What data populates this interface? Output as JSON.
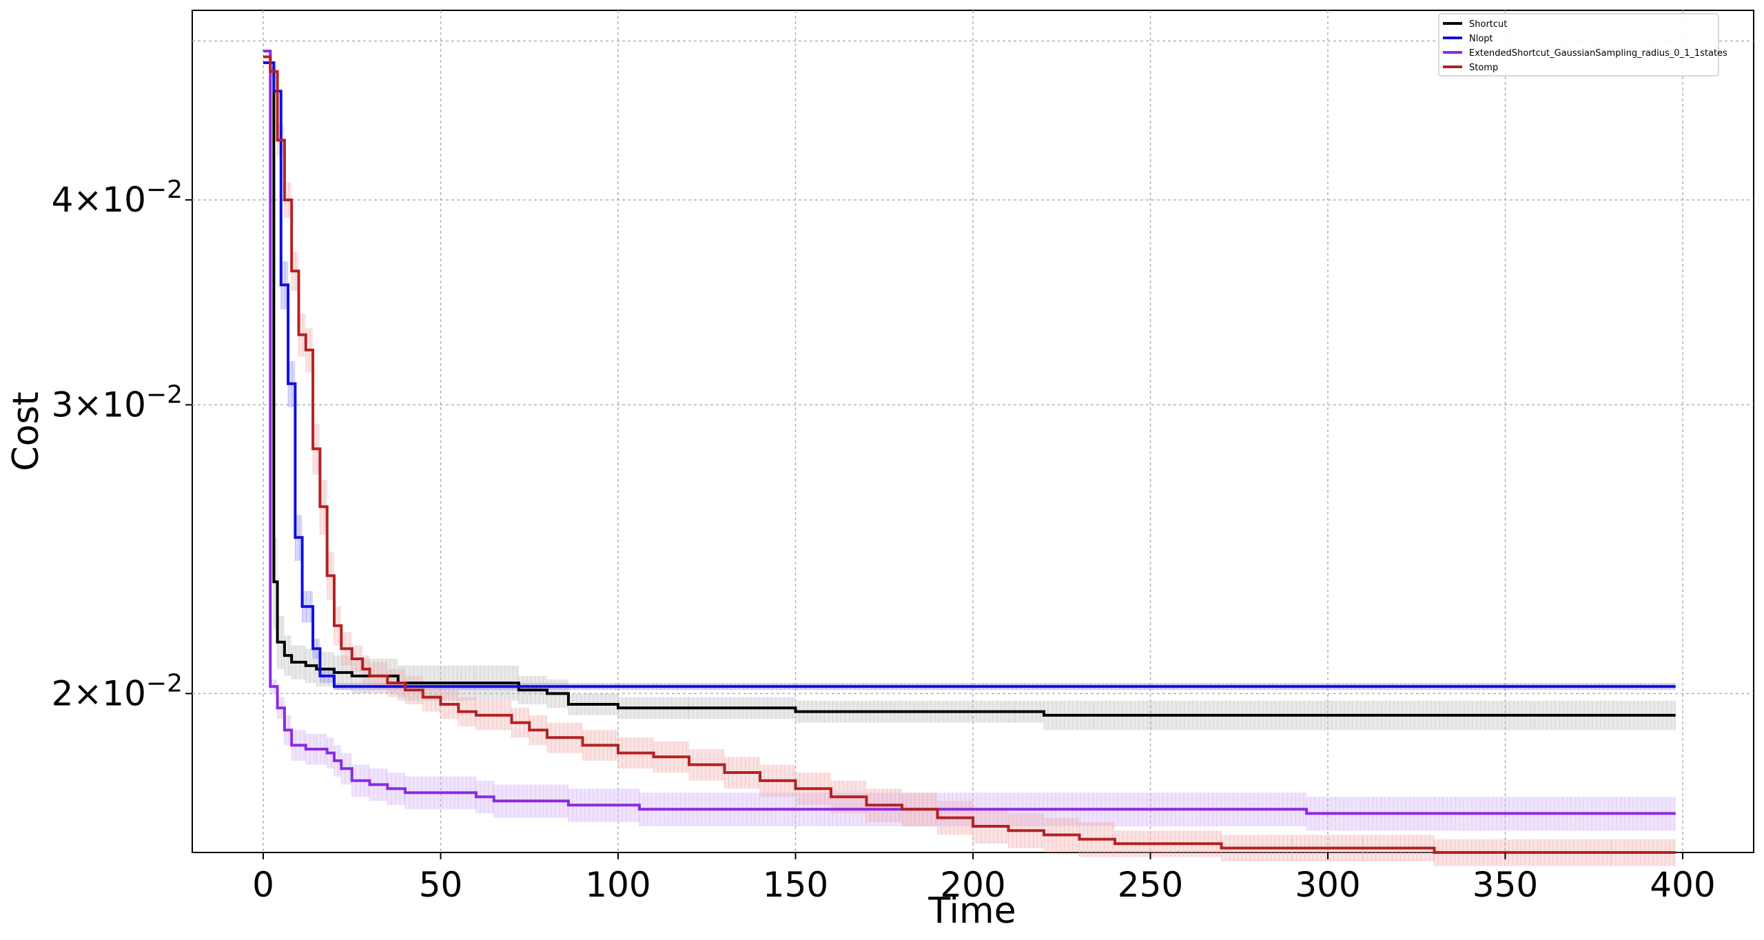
{
  "chart_data": {
    "type": "line",
    "xlabel": "Time",
    "ylabel": "Cost",
    "xlim": [
      -20,
      420
    ],
    "ylim": [
      0.016,
      0.0522
    ],
    "yscale": "log",
    "grid": true,
    "legend_position": "top-right",
    "xticks": [
      0,
      50,
      100,
      150,
      200,
      250,
      300,
      350,
      400
    ],
    "xtick_labels": [
      "0",
      "50",
      "100",
      "150",
      "200",
      "250",
      "300",
      "350",
      "400"
    ],
    "yticks": [
      {
        "value": 0.02,
        "base": "2",
        "exp": "−2"
      },
      {
        "value": 0.03,
        "base": "3",
        "exp": "−2"
      },
      {
        "value": 0.04,
        "base": "4",
        "exp": "−2"
      }
    ],
    "times_sign": "×",
    "pow_base": "10",
    "series": [
      {
        "name": "Shortcut",
        "color": "#000000",
        "band_color": "#c0c0c0",
        "x": [
          0,
          2,
          3,
          4,
          6,
          8,
          12,
          15,
          20,
          25,
          30,
          38,
          40,
          50,
          60,
          72,
          80,
          86,
          100,
          120,
          150,
          180,
          212,
          220,
          300,
          398
        ],
        "y": [
          0.0485,
          0.0485,
          0.0234,
          0.0215,
          0.0211,
          0.0209,
          0.0208,
          0.0207,
          0.0206,
          0.0205,
          0.0205,
          0.0203,
          0.0203,
          0.0203,
          0.0203,
          0.0201,
          0.02,
          0.0197,
          0.0196,
          0.0196,
          0.0195,
          0.0195,
          0.0195,
          0.0194,
          0.0194,
          0.0194
        ],
        "err": [
          0,
          0,
          0.0015,
          0.0008,
          0.0006,
          0.0005,
          0.0005,
          0.0005,
          0.0005,
          0.0005,
          0.0005,
          0.0005,
          0.0005,
          0.0005,
          0.0005,
          0.0004,
          0.0004,
          0.0003,
          0.0003,
          0.0003,
          0.0003,
          0.0003,
          0.0003,
          0.0004,
          0.0004,
          0.0004
        ]
      },
      {
        "name": "Nlopt",
        "color": "#1010d8",
        "band_color": "#9090ff",
        "x": [
          0,
          3,
          5,
          7,
          9,
          11,
          14,
          16,
          20,
          398
        ],
        "y": [
          0.0485,
          0.0466,
          0.0355,
          0.0309,
          0.0249,
          0.0226,
          0.0213,
          0.0205,
          0.0202,
          0.0202
        ],
        "err": [
          0,
          0,
          0.0012,
          0.001,
          0.0008,
          0.0005,
          0.0003,
          0.0002,
          0.0001,
          0.0001
        ]
      },
      {
        "name": "ExtendedShortcut_GaussianSampling_radius_0_1_1states",
        "color": "#8a2be2",
        "band_color": "#d4b2f5",
        "x": [
          0,
          1,
          2,
          4,
          6,
          8,
          12,
          15,
          18,
          20,
          22,
          25,
          30,
          35,
          40,
          55,
          60,
          65,
          80,
          86,
          100,
          106,
          150,
          200,
          294,
          398
        ],
        "y": [
          0.0493,
          0.0493,
          0.0202,
          0.0196,
          0.019,
          0.0186,
          0.0185,
          0.0185,
          0.0184,
          0.0182,
          0.018,
          0.0177,
          0.0176,
          0.0175,
          0.0174,
          0.0174,
          0.0173,
          0.0172,
          0.0172,
          0.0171,
          0.0171,
          0.017,
          0.017,
          0.017,
          0.0169,
          0.0169
        ],
        "err": [
          0,
          0,
          0.0002,
          0.0003,
          0.0004,
          0.0004,
          0.0004,
          0.0004,
          0.0004,
          0.0004,
          0.0004,
          0.0004,
          0.0004,
          0.0004,
          0.0004,
          0.0004,
          0.0004,
          0.0004,
          0.0004,
          0.0004,
          0.0004,
          0.0004,
          0.0004,
          0.0004,
          0.0004,
          0.0004
        ]
      },
      {
        "name": "Stomp",
        "color": "#b22222",
        "band_color": "#f0b0b0",
        "x": [
          0,
          2,
          4,
          6,
          8,
          10,
          12,
          14,
          16,
          18,
          20,
          22,
          25,
          28,
          30,
          35,
          40,
          45,
          50,
          55,
          60,
          70,
          75,
          80,
          90,
          100,
          110,
          120,
          130,
          140,
          150,
          160,
          170,
          180,
          190,
          200,
          210,
          220,
          230,
          240,
          250,
          270,
          290,
          310,
          330,
          360,
          380,
          398
        ],
        "y": [
          0.0489,
          0.0479,
          0.0435,
          0.04,
          0.0362,
          0.0331,
          0.0324,
          0.0282,
          0.026,
          0.0236,
          0.022,
          0.0213,
          0.021,
          0.0207,
          0.0205,
          0.0203,
          0.0201,
          0.0199,
          0.0197,
          0.0195,
          0.0194,
          0.0192,
          0.019,
          0.0188,
          0.0186,
          0.0184,
          0.0183,
          0.0181,
          0.0179,
          0.0177,
          0.0175,
          0.0173,
          0.0171,
          0.017,
          0.0168,
          0.0166,
          0.0165,
          0.0164,
          0.0163,
          0.0162,
          0.0162,
          0.0161,
          0.0161,
          0.0161,
          0.016,
          0.016,
          0.016,
          0.016
        ],
        "err": [
          0,
          0.0004,
          0.001,
          0.001,
          0.001,
          0.001,
          0.001,
          0.001,
          0.001,
          0.0008,
          0.0006,
          0.0005,
          0.0004,
          0.0004,
          0.0004,
          0.0004,
          0.0004,
          0.0004,
          0.0004,
          0.0004,
          0.0004,
          0.0004,
          0.0004,
          0.0004,
          0.0004,
          0.0004,
          0.0004,
          0.0004,
          0.0004,
          0.0004,
          0.0004,
          0.0004,
          0.0004,
          0.0004,
          0.0004,
          0.0004,
          0.0004,
          0.0004,
          0.0004,
          0.0003,
          0.0003,
          0.0003,
          0.0003,
          0.0003,
          0.0003,
          0.0003,
          0.0003,
          0.0003
        ]
      }
    ]
  }
}
